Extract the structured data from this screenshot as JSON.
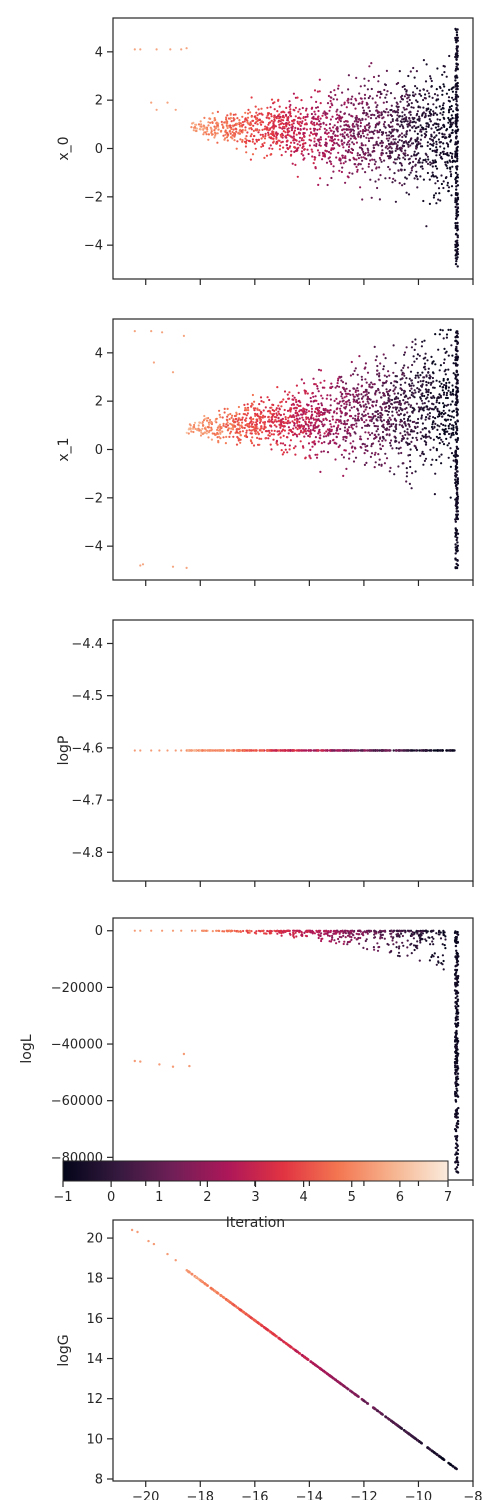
{
  "chart_data": [
    {
      "type": "scatter",
      "ylabel": "x_0",
      "xlim": [
        -21.2,
        -8.0
      ],
      "ylim": [
        -5.4,
        5.4
      ],
      "yticks": [
        -4,
        -2,
        0,
        2,
        4
      ],
      "yticklabels": [
        "−4",
        "−2",
        "0",
        "2",
        "4"
      ],
      "xticks_shown": false
    },
    {
      "type": "scatter",
      "ylabel": "x_1",
      "xlim": [
        -21.2,
        -8.0
      ],
      "ylim": [
        -5.4,
        5.4
      ],
      "yticks": [
        -4,
        -2,
        0,
        2,
        4
      ],
      "yticklabels": [
        "−4",
        "−2",
        "0",
        "2",
        "4"
      ],
      "xticks_shown": false
    },
    {
      "type": "scatter",
      "ylabel": "logP",
      "xlim": [
        -21.2,
        -8.0
      ],
      "ylim": [
        -4.855,
        -4.355
      ],
      "yticks": [
        -4.8,
        -4.7,
        -4.6,
        -4.5,
        -4.4
      ],
      "yticklabels": [
        "−4.8",
        "−4.7",
        "−4.6",
        "−4.5",
        "−4.4"
      ],
      "value_line": -4.605,
      "xticks_shown": false
    },
    {
      "type": "scatter",
      "ylabel": "logL",
      "xlim": [
        -21.2,
        -8.0
      ],
      "ylim": [
        -88000,
        4500
      ],
      "yticks": [
        -80000,
        -60000,
        -40000,
        -20000,
        0
      ],
      "yticklabels": [
        "−80000",
        "−60000",
        "−40000",
        "−20000",
        "0"
      ],
      "outliers": [
        {
          "x": -20.4,
          "y": -46000
        },
        {
          "x": -20.2,
          "y": -46200
        },
        {
          "x": -19.5,
          "y": -47200
        },
        {
          "x": -19.0,
          "y": -48000
        },
        {
          "x": -18.6,
          "y": -43500
        },
        {
          "x": -18.4,
          "y": -47800
        }
      ],
      "xticks_shown": false
    },
    {
      "type": "scatter",
      "ylabel": "logG",
      "xlim": [
        -21.2,
        -8.0
      ],
      "ylim": [
        7.9,
        20.9
      ],
      "yticks": [
        8,
        10,
        12,
        14,
        16,
        18,
        20
      ],
      "yticklabels": [
        "8",
        "10",
        "12",
        "14",
        "16",
        "18",
        "20"
      ],
      "xticks": [
        -20,
        -18,
        -16,
        -14,
        -12,
        -10,
        -8
      ],
      "xticklabels": [
        "−20",
        "−18",
        "−16",
        "−14",
        "−12",
        "−10",
        "−8"
      ],
      "line": {
        "x0": -20.5,
        "y0": 20.4,
        "x1": -8.6,
        "y1": 8.5
      }
    }
  ],
  "colorbar": {
    "label": "Iteration",
    "range": [
      -1,
      7
    ],
    "ticks": [
      -1,
      0,
      1,
      2,
      3,
      4,
      5,
      6,
      7
    ],
    "ticklabels": [
      "−1",
      "0",
      "1",
      "2",
      "3",
      "4",
      "5",
      "6",
      "7"
    ],
    "colormap": "rocket",
    "colors": [
      "#03051a",
      "#35193e",
      "#701f57",
      "#ad1759",
      "#e13342",
      "#f37651",
      "#f6b48f",
      "#faebdd"
    ]
  }
}
